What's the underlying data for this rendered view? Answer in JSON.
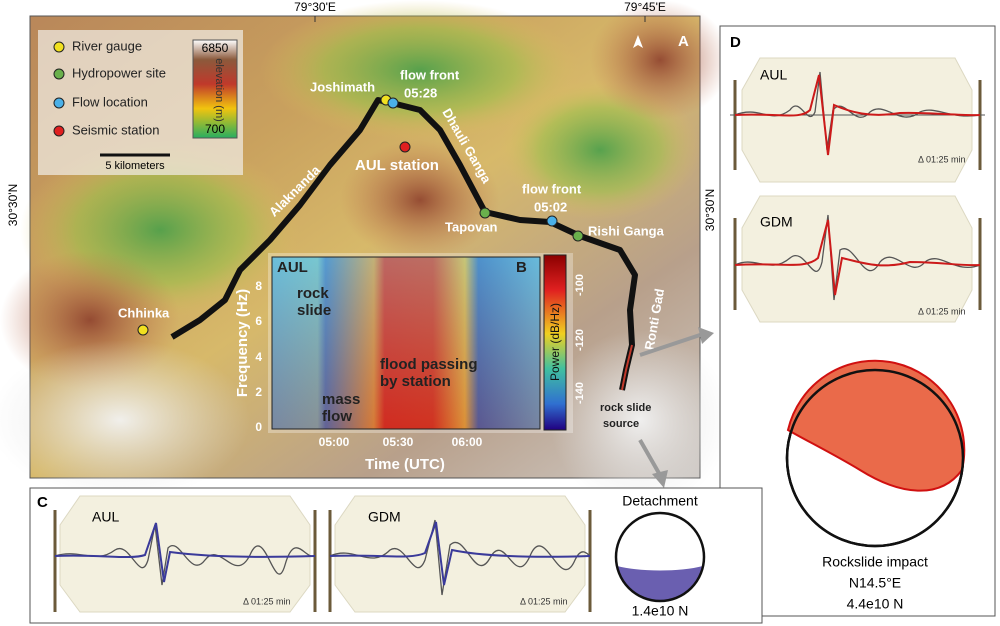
{
  "top_labels": [
    "79°30'E",
    "79°45'E"
  ],
  "side_labels": [
    "30°30'N",
    "30°30'N"
  ],
  "panel_a": {
    "letter": "A",
    "legend": [
      "River gauge",
      "Hydropower site",
      "Flow location",
      "Seismic station"
    ],
    "elevation_max": 6850,
    "elevation_min": 700,
    "elevation_label": "elevation (m)",
    "scale_bar": "5 kilometers",
    "places": [
      "Joshimath",
      "flow front",
      "05:28",
      "AUL station",
      "Alaknanda",
      "Dhauli Ganga",
      "Tapovan",
      "flow front",
      "05:02",
      "Rishi Ganga",
      "Ronti Gad",
      "Chhinka",
      "rock slide",
      "source"
    ]
  },
  "panel_b": {
    "letter": "B",
    "station": "AUL",
    "y_label": "Frequency (Hz)",
    "yticks": [
      0,
      2,
      4,
      6,
      8
    ],
    "x_label": "Time (UTC)",
    "xticks": [
      "05:00",
      "05:30",
      "06:00"
    ],
    "colorbar_label": "Power (dB/Hz)",
    "colorbar_ticks": [
      -100,
      -120,
      -140
    ],
    "annotations": [
      "rock",
      "slide",
      "flood passing",
      "by station",
      "mass",
      "flow"
    ]
  },
  "panel_c": {
    "letter": "C",
    "stations": [
      "AUL",
      "GDM"
    ],
    "durations": [
      "Δ 01:25 min",
      "Δ 01:25 min"
    ],
    "mechanism": "Detachment",
    "force": "1.4e10 N"
  },
  "panel_d": {
    "letter": "D",
    "stations": [
      "AUL",
      "GDM"
    ],
    "durations": [
      "Δ 01:25 min",
      "Δ 01:25 min"
    ],
    "title": "Rockslide impact",
    "direction": "N14.5°E",
    "force": "4.4e10 N"
  }
}
